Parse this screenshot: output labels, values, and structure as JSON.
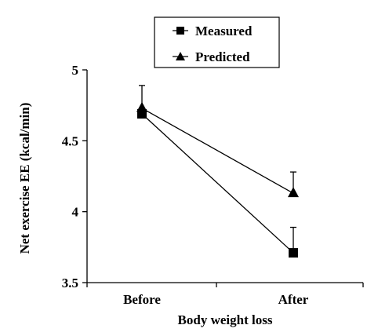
{
  "chart_data": {
    "type": "line",
    "xlabel": "Body weight loss",
    "ylabel": "Net exercise EE (kcal/min)",
    "categories": [
      "Before",
      "After"
    ],
    "ylim": [
      3.5,
      5
    ],
    "yticks": [
      "3.5",
      "4",
      "4.5",
      "5"
    ],
    "legend_position": "top-center",
    "grid": false,
    "series": [
      {
        "name": "Measured",
        "marker": "square",
        "values": [
          4.69,
          3.71
        ],
        "error_up": [
          0.03,
          0.18
        ]
      },
      {
        "name": "Predicted",
        "marker": "triangle",
        "values": [
          4.73,
          4.13
        ],
        "error_up": [
          0.16,
          0.15
        ]
      }
    ]
  }
}
